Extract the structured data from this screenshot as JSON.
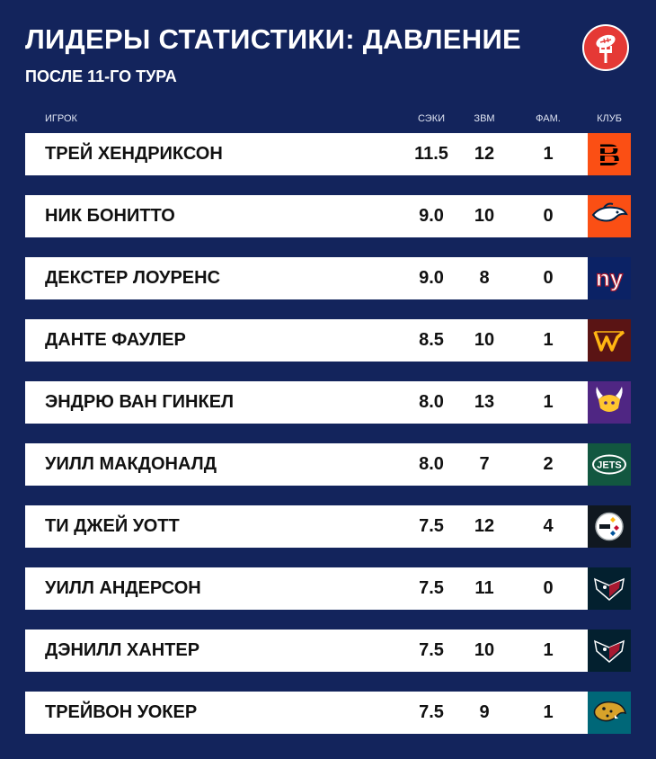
{
  "title": "ЛИДЕРЫ СТАТИСТИКИ: ДАВЛЕНИЕ",
  "subtitle": "ПОСЛЕ 11-ГО ТУРА",
  "logo_icon": "football-fork-icon",
  "columns": {
    "player": "ИГРОК",
    "sacks": "СЭКИ",
    "tfl": "ЗВМ",
    "ff": "ФАМ.",
    "team": "КЛУБ"
  },
  "rows": [
    {
      "name": "ТРЕЙ ХЕНДРИКСОН",
      "sacks": "11.5",
      "tfl": "12",
      "ff": "1",
      "team_icon": "bengals-logo",
      "team_color": "#fb4f14"
    },
    {
      "name": "НИК БОНИТТО",
      "sacks": "9.0",
      "tfl": "10",
      "ff": "0",
      "team_icon": "broncos-logo",
      "team_color": "#fb4f14"
    },
    {
      "name": "ДЕКСТЕР ЛОУРЕНС",
      "sacks": "9.0",
      "tfl": "8",
      "ff": "0",
      "team_icon": "giants-logo",
      "team_color": "#0b2265"
    },
    {
      "name": "ДАНТЕ ФАУЛЕР",
      "sacks": "8.5",
      "tfl": "10",
      "ff": "1",
      "team_icon": "commanders-logo",
      "team_color": "#5a1414"
    },
    {
      "name": "ЭНДРЮ ВАН ГИНКЕЛ",
      "sacks": "8.0",
      "tfl": "13",
      "ff": "1",
      "team_icon": "vikings-logo",
      "team_color": "#4f2683"
    },
    {
      "name": "УИЛЛ МАКДОНАЛД",
      "sacks": "8.0",
      "tfl": "7",
      "ff": "2",
      "team_icon": "jets-logo",
      "team_color": "#125740"
    },
    {
      "name": "ТИ ДЖЕЙ УОТТ",
      "sacks": "7.5",
      "tfl": "12",
      "ff": "4",
      "team_icon": "steelers-logo",
      "team_color": "#101820"
    },
    {
      "name": "УИЛЛ АНДЕРСОН",
      "sacks": "7.5",
      "tfl": "11",
      "ff": "0",
      "team_icon": "texans-logo",
      "team_color": "#03202f"
    },
    {
      "name": "ДЭНИЛЛ ХАНТЕР",
      "sacks": "7.5",
      "tfl": "10",
      "ff": "1",
      "team_icon": "texans-logo",
      "team_color": "#03202f"
    },
    {
      "name": "ТРЕЙВОН УОКЕР",
      "sacks": "7.5",
      "tfl": "9",
      "ff": "1",
      "team_icon": "jaguars-logo",
      "team_color": "#006778"
    }
  ]
}
